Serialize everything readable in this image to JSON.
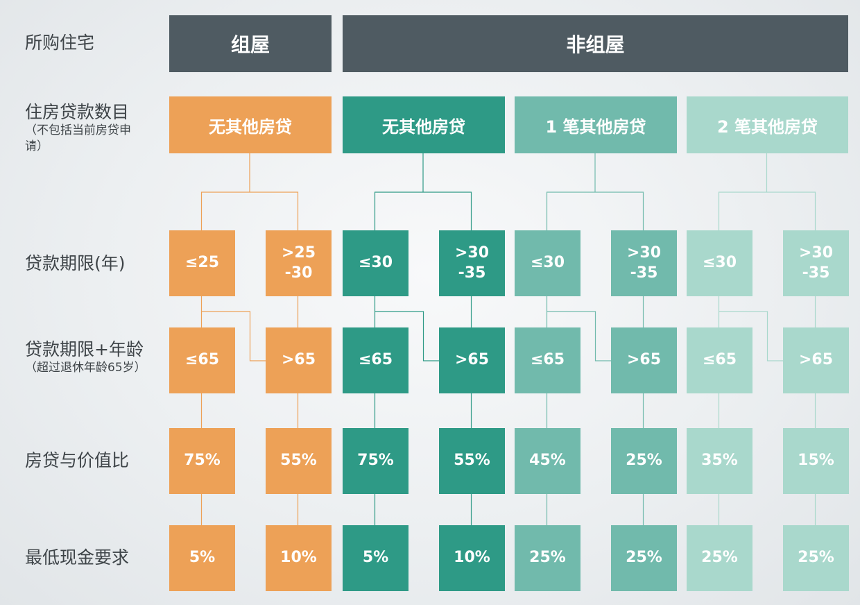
{
  "row_labels": {
    "housing": "所购住宅",
    "loans": "住房贷款数目",
    "loans_sub": "（不包括当前房贷申请）",
    "term": "贷款期限(年)",
    "term_age": "贷款期限+年龄",
    "term_age_sub": "（超过退休年龄65岁）",
    "ltv": "房贷与价值比",
    "cash": "最低现金要求"
  },
  "headers": {
    "hdb": "组屋",
    "private": "非组屋"
  },
  "colors": {
    "header": "#4f5b62",
    "hdb": "#eda157",
    "private_0": "#2e9a86",
    "private_1": "#71baac",
    "private_2": "#a9d8cc"
  },
  "groups": [
    {
      "category": "无其他房贷",
      "color": "#eda157",
      "left": {
        "term": "≤25",
        "age": "≤65",
        "ltv": "75%",
        "cash": "5%"
      },
      "right": {
        "term": ">25\n-30",
        "age": ">65",
        "ltv": "55%",
        "cash": "10%"
      }
    },
    {
      "category": "无其他房贷",
      "color": "#2e9a86",
      "left": {
        "term": "≤30",
        "age": "≤65",
        "ltv": "75%",
        "cash": "5%"
      },
      "right": {
        "term": ">30\n-35",
        "age": ">65",
        "ltv": "55%",
        "cash": "10%"
      }
    },
    {
      "category": "1 笔其他房贷",
      "color": "#71baac",
      "left": {
        "term": "≤30",
        "age": "≤65",
        "ltv": "45%",
        "cash": "25%"
      },
      "right": {
        "term": ">30\n-35",
        "age": ">65",
        "ltv": "25%",
        "cash": "25%"
      }
    },
    {
      "category": "2 笔其他房贷",
      "color": "#a9d8cc",
      "left": {
        "term": "≤30",
        "age": "≤65",
        "ltv": "35%",
        "cash": "25%"
      },
      "right": {
        "term": ">30\n-35",
        "age": ">65",
        "ltv": "15%",
        "cash": "25%"
      }
    }
  ]
}
